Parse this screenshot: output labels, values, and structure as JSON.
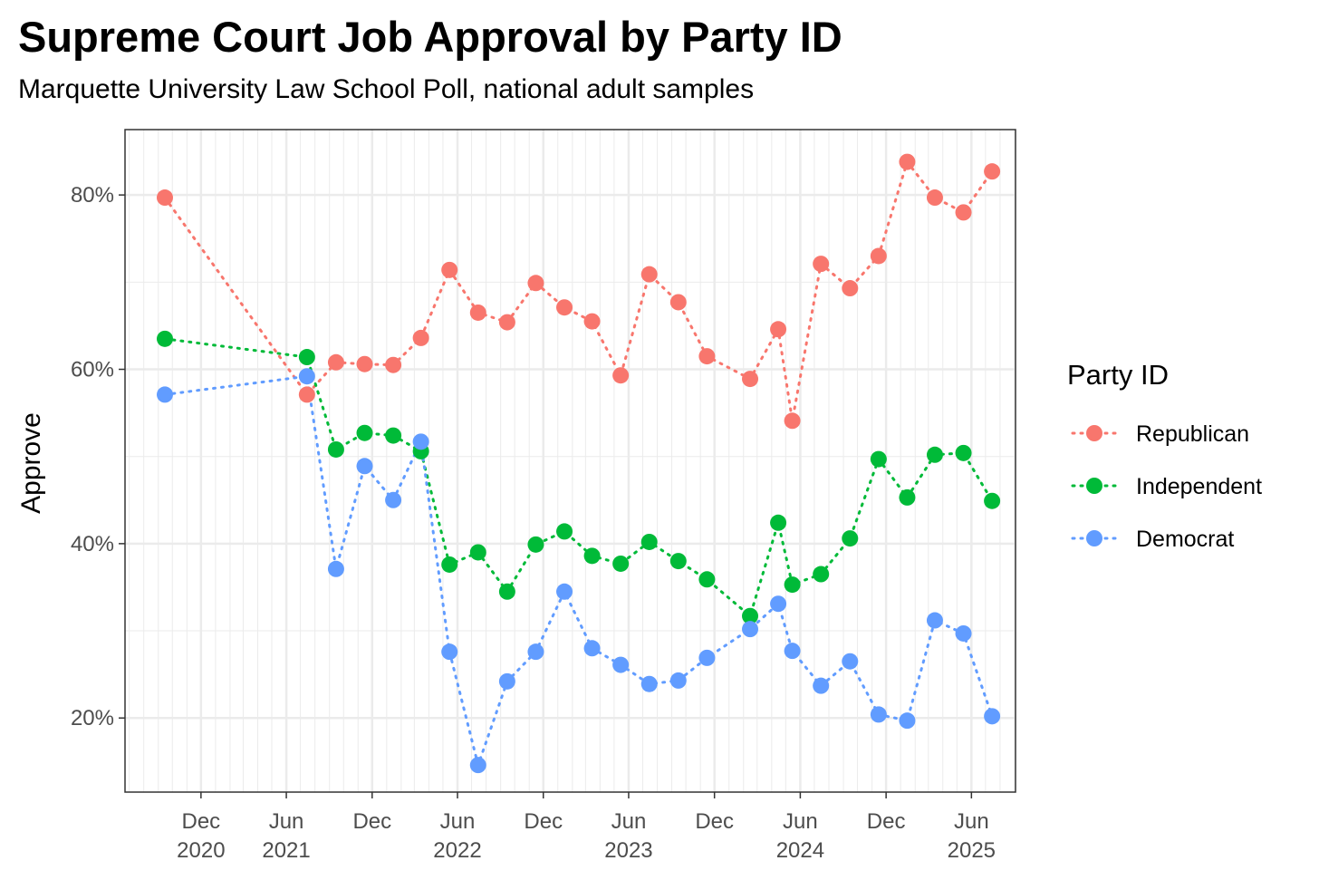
{
  "chart_data": {
    "type": "line",
    "title": "Supreme Court Job Approval by Party ID",
    "subtitle": "Marquette University Law School Poll, national adult samples",
    "xlabel": "",
    "ylabel": "Approve",
    "ylim": [
      11.5,
      87.5
    ],
    "xlim": [
      "2020-06-22",
      "2025-09-03"
    ],
    "line_style": "dotted",
    "grid": true,
    "y_ticks": [
      {
        "value": 20,
        "label": "20%"
      },
      {
        "value": 40,
        "label": "40%"
      },
      {
        "value": 60,
        "label": "60%"
      },
      {
        "value": 80,
        "label": "80%"
      }
    ],
    "x_ticks": [
      {
        "date": "2020-12-01",
        "label": [
          "Dec",
          "2020"
        ]
      },
      {
        "date": "2021-06-01",
        "label": [
          "Jun",
          "2021"
        ]
      },
      {
        "date": "2021-12-01",
        "label": [
          "Dec",
          ""
        ]
      },
      {
        "date": "2022-06-01",
        "label": [
          "Jun",
          "2022"
        ]
      },
      {
        "date": "2022-12-01",
        "label": [
          "Dec",
          ""
        ]
      },
      {
        "date": "2023-06-01",
        "label": [
          "Jun",
          "2023"
        ]
      },
      {
        "date": "2023-12-01",
        "label": [
          "Dec",
          ""
        ]
      },
      {
        "date": "2024-06-01",
        "label": [
          "Jun",
          "2024"
        ]
      },
      {
        "date": "2024-12-01",
        "label": [
          "Dec",
          ""
        ]
      },
      {
        "date": "2025-06-01",
        "label": [
          "Jun",
          "2025"
        ]
      }
    ],
    "legend": {
      "title": "Party ID",
      "position": "right"
    },
    "x": [
      "2020-09-15",
      "2021-07-15",
      "2021-09-15",
      "2021-11-15",
      "2022-01-15",
      "2022-03-15",
      "2022-05-15",
      "2022-07-15",
      "2022-09-15",
      "2022-11-15",
      "2023-01-15",
      "2023-03-15",
      "2023-05-15",
      "2023-07-15",
      "2023-09-15",
      "2023-11-15",
      "2024-02-15",
      "2024-04-15",
      "2024-05-15",
      "2024-07-15",
      "2024-09-15",
      "2024-11-15",
      "2025-01-15",
      "2025-03-15",
      "2025-05-15",
      "2025-07-15"
    ],
    "series": [
      {
        "name": "Republican",
        "color": "#F8766D",
        "values": [
          79.7,
          57.1,
          60.8,
          60.6,
          60.5,
          63.6,
          71.4,
          66.5,
          65.4,
          69.9,
          67.1,
          65.5,
          59.3,
          70.9,
          67.7,
          61.5,
          58.9,
          64.6,
          54.1,
          72.1,
          69.3,
          73.0,
          83.8,
          79.7,
          78.0,
          82.7
        ]
      },
      {
        "name": "Independent",
        "color": "#00BA38",
        "values": [
          63.5,
          61.4,
          50.8,
          52.7,
          52.4,
          50.6,
          37.6,
          39.0,
          34.5,
          39.9,
          41.4,
          38.6,
          37.7,
          40.2,
          38.0,
          35.9,
          31.7,
          42.4,
          35.3,
          36.5,
          40.6,
          49.7,
          45.3,
          50.2,
          50.4,
          44.9
        ]
      },
      {
        "name": "Democrat",
        "color": "#619CFF",
        "values": [
          57.1,
          59.2,
          37.1,
          48.9,
          45.0,
          51.7,
          27.6,
          14.6,
          24.2,
          27.6,
          34.5,
          28.0,
          26.1,
          23.9,
          24.3,
          26.9,
          30.2,
          33.1,
          27.7,
          23.7,
          26.5,
          20.4,
          19.7,
          31.2,
          29.7,
          20.2
        ]
      }
    ]
  }
}
